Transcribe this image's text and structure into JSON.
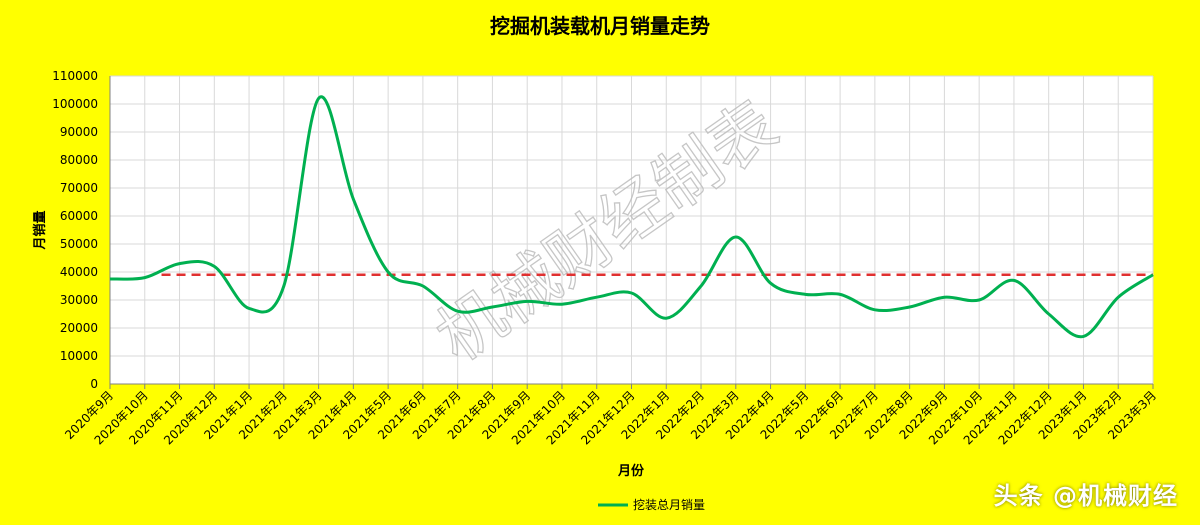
{
  "chart_data": {
    "type": "line",
    "title": "挖掘机装载机月销量走势",
    "xlabel": "月份",
    "ylabel": "月销量",
    "ylim": [
      0,
      110000
    ],
    "yticks": [
      0,
      10000,
      20000,
      30000,
      40000,
      50000,
      60000,
      70000,
      80000,
      90000,
      100000,
      110000
    ],
    "grid": true,
    "legend_position": "bottom",
    "categories": [
      "2020年9月",
      "2020年10月",
      "2020年11月",
      "2020年12月",
      "2021年1月",
      "2021年2月",
      "2021年3月",
      "2021年4月",
      "2021年5月",
      "2021年6月",
      "2021年7月",
      "2021年8月",
      "2021年9月",
      "2021年10月",
      "2021年11月",
      "2021年12月",
      "2022年1月",
      "2022年2月",
      "2022年3月",
      "2022年4月",
      "2022年5月",
      "2022年6月",
      "2022年7月",
      "2022年8月",
      "2022年9月",
      "2022年10月",
      "2022年11月",
      "2022年12月",
      "2023年1月",
      "2023年2月",
      "2023年3月"
    ],
    "series": [
      {
        "name": "挖装总月销量",
        "color": "#00b050",
        "values": [
          37500,
          38000,
          43000,
          42000,
          27000,
          35000,
          102000,
          66000,
          40000,
          35000,
          26000,
          27500,
          29500,
          28500,
          31000,
          32500,
          23500,
          35000,
          52500,
          36000,
          32000,
          32000,
          26500,
          27500,
          31000,
          30000,
          37000,
          25000,
          17000,
          31000,
          39000
        ]
      }
    ],
    "reference_line": {
      "value": 39000,
      "color": "#e03030",
      "style": "dashed",
      "from_category": "2020年11月"
    }
  },
  "watermark": "机械财经制表",
  "footer": "头条 @机械财经"
}
